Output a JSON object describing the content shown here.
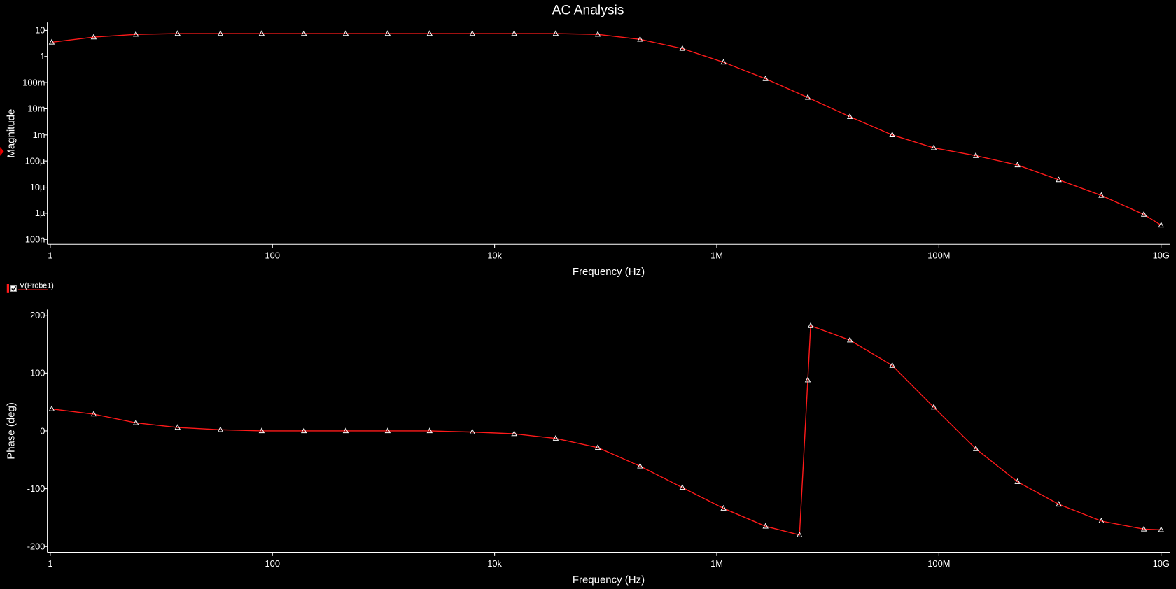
{
  "chart_data": [
    {
      "type": "line",
      "title": "AC Analysis",
      "xlabel": "Frequency (Hz)",
      "ylabel": "Magnitude",
      "xscale": "log",
      "yscale": "log",
      "xlim": [
        0.94,
        12000000000
      ],
      "ylim": [
        6.5e-08,
        20
      ],
      "xticks": [
        1,
        100,
        {
          "value": 10000,
          "label": "10k"
        },
        {
          "value": 1000000,
          "label": "1M"
        },
        {
          "value": 100000000,
          "label": "100M"
        },
        {
          "value": 10000000000,
          "label": "10G"
        }
      ],
      "yticks": [
        10,
        1,
        {
          "value": 0.1,
          "label": "100m"
        },
        {
          "value": 0.01,
          "label": "10m"
        },
        {
          "value": 0.001,
          "label": "1m"
        },
        {
          "value": 0.0001,
          "label": "100µ"
        },
        {
          "value": 1e-05,
          "label": "10µ"
        },
        {
          "value": 1e-06,
          "label": "1µ"
        },
        {
          "value": 1e-07,
          "label": "100n"
        }
      ],
      "x": [
        1.03,
        2.46,
        5.9,
        14,
        34,
        80,
        192,
        457,
        1090,
        2600,
        6300,
        15000,
        35500,
        85000,
        204000,
        490000,
        1150000,
        2750000,
        6600000,
        15800000,
        38000000,
        90000000,
        215000000,
        510000000,
        1200000000,
        2900000000,
        7000000000,
        10000000000
      ],
      "series": [
        {
          "color": "#ff1a1a",
          "values": [
            3.5,
            5.5,
            7,
            7.5,
            7.5,
            7.5,
            7.5,
            7.5,
            7.5,
            7.5,
            7.5,
            7.5,
            7.5,
            7,
            4.5,
            2,
            0.6,
            0.14,
            0.027,
            0.005,
            0.001,
            0.00032,
            0.00016,
            7e-05,
            1.9e-05,
            4.8e-06,
            9e-07,
            3.5e-07
          ]
        }
      ]
    },
    {
      "type": "line",
      "xlabel": "Frequency (Hz)",
      "ylabel": "Phase (deg)",
      "xscale": "log",
      "xlim": [
        0.94,
        12000000000
      ],
      "ylim": [
        -210,
        210
      ],
      "xticks": [
        1,
        100,
        {
          "value": 10000,
          "label": "10k"
        },
        {
          "value": 1000000,
          "label": "1M"
        },
        {
          "value": 100000000,
          "label": "100M"
        },
        {
          "value": 10000000000,
          "label": "10G"
        }
      ],
      "yticks": [
        200,
        100,
        0,
        -100,
        -200
      ],
      "x": [
        1.03,
        2.46,
        5.9,
        14,
        34,
        80,
        192,
        457,
        1090,
        2600,
        6300,
        15000,
        35500,
        85000,
        204000,
        490000,
        1150000,
        2750000,
        5560000,
        6600000,
        7000000,
        15800000,
        38000000,
        90000000,
        215000000,
        510000000,
        1200000000,
        2900000000,
        7000000000,
        10000000000
      ],
      "series": [
        {
          "name": "V(Probe1)",
          "color": "#ff1a1a",
          "values": [
            38,
            29,
            14,
            6,
            2,
            0,
            0,
            0,
            0,
            0,
            -2,
            -5,
            -13,
            -29,
            -61,
            -98,
            -134,
            -165,
            -180,
            88,
            182,
            157,
            113,
            41,
            -31,
            -88,
            -127,
            -156,
            -170,
            -171
          ]
        }
      ]
    }
  ]
}
